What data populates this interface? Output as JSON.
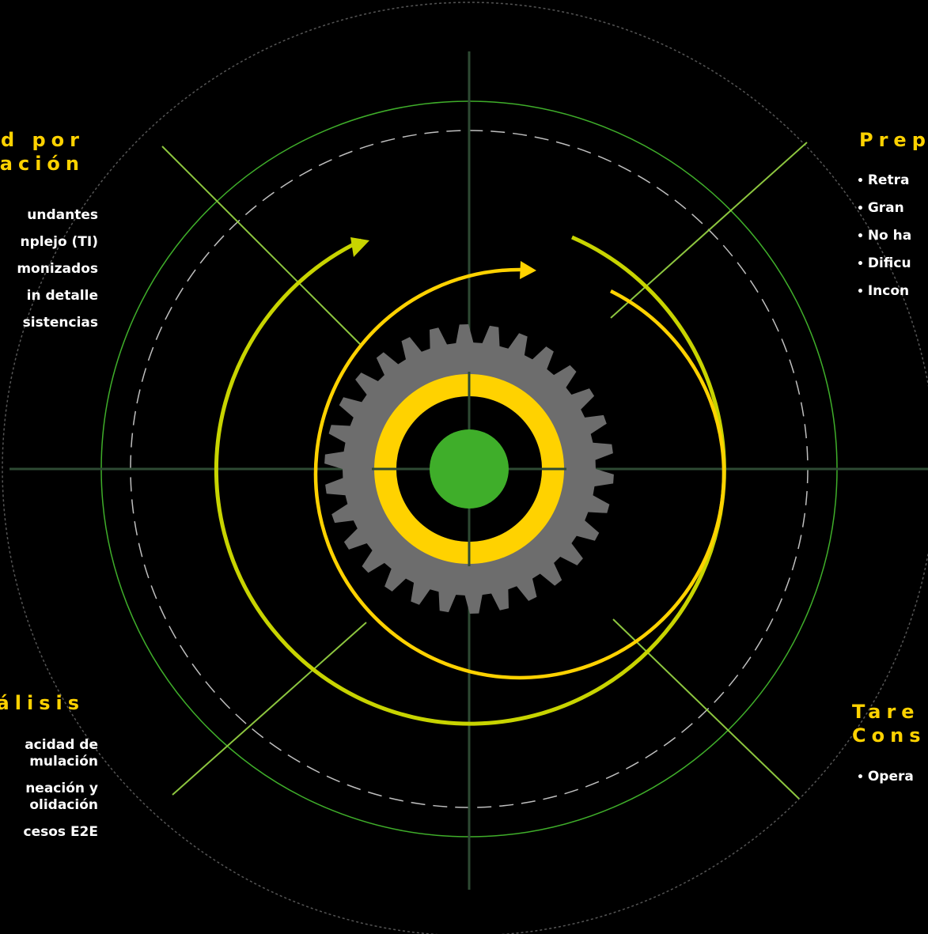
{
  "colors": {
    "background": "#000000",
    "heading": "#FFD200",
    "item_text": "#FFFFFF",
    "ring_lime": "#C8D400",
    "ring_yellow": "#FFD200",
    "gear": "#6D6D6D",
    "center_dot": "#3FAE2A",
    "axis_line": "#2E4A33",
    "diagonal_line": "#8DC63F",
    "outer_ring_green": "#3FAE2A",
    "dashed_ring": "#BFBFBF",
    "outer_dotted_ring": "#555555"
  },
  "icons": [
    "gear-icon",
    "arrow-head-icon"
  ],
  "quadrants": {
    "top_left": {
      "heading_lines": [
        "d por",
        "ación"
      ],
      "items": [
        "undantes",
        "nplejo (TI)",
        "monizados",
        "in detalle",
        "sistencias"
      ]
    },
    "top_right": {
      "heading_lines": [
        "Prep"
      ],
      "items": [
        "Retra",
        "Gran",
        "No ha",
        "Dificu",
        "Incon"
      ]
    },
    "bottom_left": {
      "heading_lines": [
        "álisis"
      ],
      "items": [
        "acidad de\nmulación",
        "neación y\nolidación",
        "cesos E2E"
      ]
    },
    "bottom_right": {
      "heading_lines": [
        "Tare",
        "Cons"
      ],
      "items": [
        "Opera"
      ]
    }
  }
}
